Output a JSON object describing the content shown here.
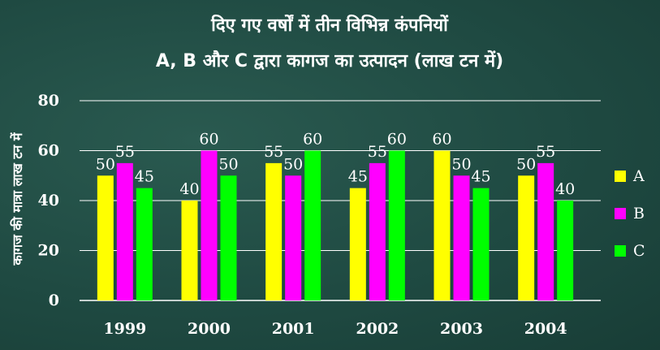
{
  "chart_data": {
    "type": "bar",
    "title": "दिए गए वर्षों में तीन विभिन्न कंपनियों",
    "subtitle": "A, B और C द्वारा कागज का उत्पादन (लाख टन में)",
    "ylabel": "कागज की मात्रा लाख टन में",
    "xlabel": "",
    "ylim": [
      0,
      80
    ],
    "yticks": [
      0,
      20,
      40,
      60,
      80
    ],
    "categories": [
      "1999",
      "2000",
      "2001",
      "2002",
      "2003",
      "2004"
    ],
    "series": [
      {
        "name": "A",
        "color": "#ffff00",
        "values": [
          50,
          40,
          55,
          45,
          60,
          50
        ]
      },
      {
        "name": "B",
        "color": "#ff00ff",
        "values": [
          55,
          60,
          50,
          55,
          50,
          55
        ]
      },
      {
        "name": "C",
        "color": "#00ff00",
        "values": [
          45,
          50,
          60,
          60,
          45,
          40
        ]
      }
    ],
    "grid": true,
    "legend": "right"
  }
}
